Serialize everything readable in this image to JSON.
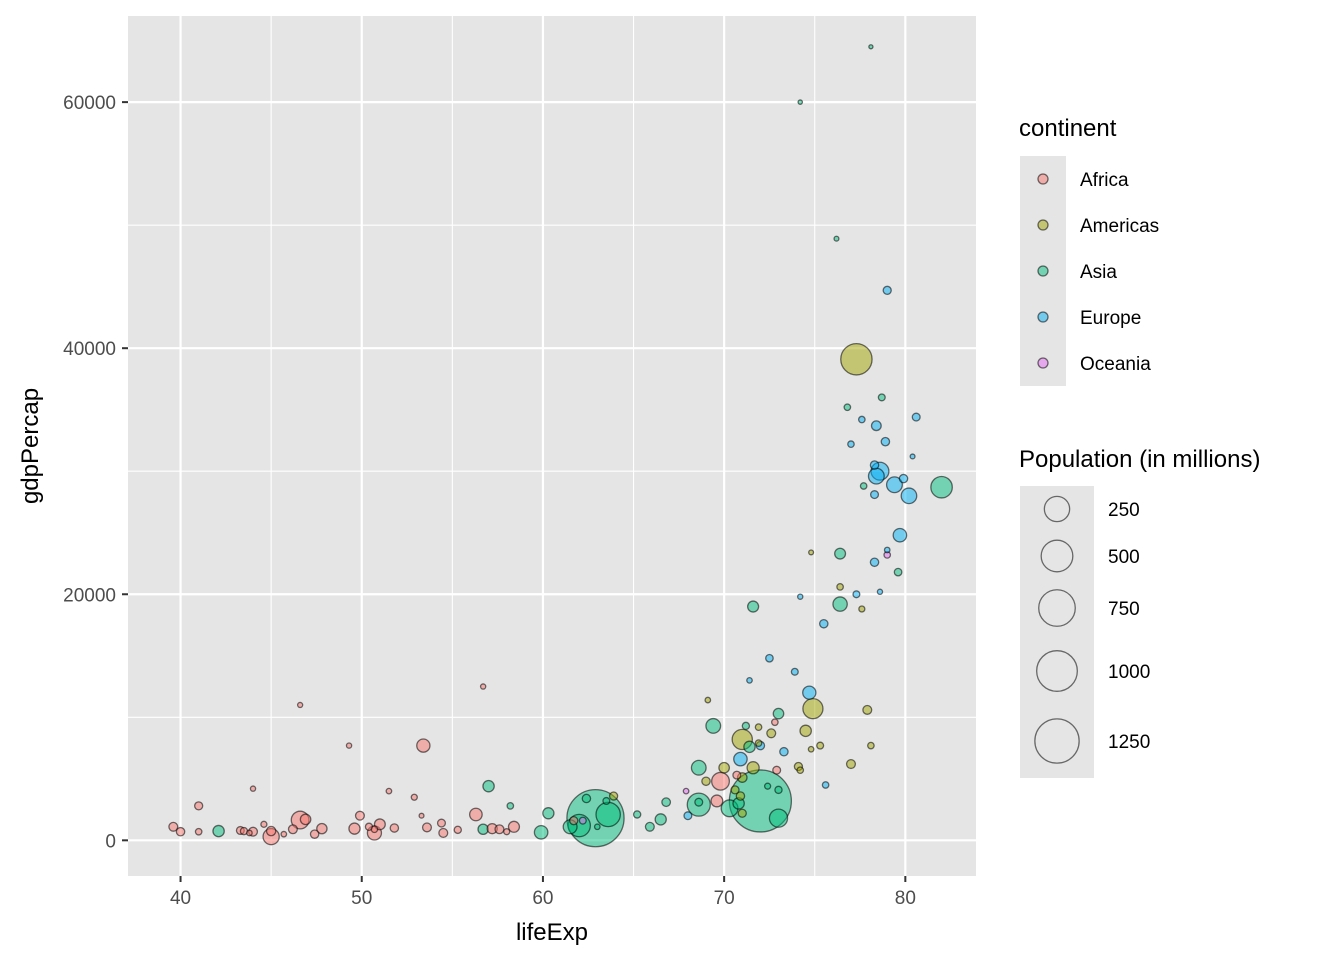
{
  "chart_data": {
    "type": "scatter",
    "title": "",
    "xlabel": "lifeExp",
    "ylabel": "gdpPercap",
    "xlim": [
      37.1,
      83.9
    ],
    "ylim": [
      -2900,
      67000
    ],
    "xticks": [
      40,
      50,
      60,
      70,
      80
    ],
    "yticks": [
      0,
      20000,
      40000,
      60000
    ],
    "xtick_labels": [
      "40",
      "50",
      "60",
      "70",
      "80"
    ],
    "ytick_labels": [
      "0",
      "20000",
      "40000",
      "60000"
    ],
    "grid": true,
    "legend_placement": "right",
    "color_legend": {
      "title": "continent",
      "entries": [
        {
          "label": "Africa",
          "color": "#F8766D"
        },
        {
          "label": "Americas",
          "color": "#A3A500"
        },
        {
          "label": "Asia",
          "color": "#00BF7D"
        },
        {
          "label": "Europe",
          "color": "#00B0F6"
        },
        {
          "label": "Oceania",
          "color": "#E76BF3"
        }
      ]
    },
    "size_legend": {
      "title": "Population (in millions)",
      "entries": [
        {
          "label": "250",
          "value": 250
        },
        {
          "label": "500",
          "value": 500
        },
        {
          "label": "750",
          "value": 750
        },
        {
          "label": "1000",
          "value": 1000
        },
        {
          "label": "1250",
          "value": 1250
        }
      ]
    },
    "point_alpha": 0.5,
    "points": [
      {
        "x": 39.6,
        "y": 1100,
        "pop": 12,
        "c": "Africa"
      },
      {
        "x": 40.0,
        "y": 700,
        "pop": 10,
        "c": "Africa"
      },
      {
        "x": 41.0,
        "y": 2800,
        "pop": 9,
        "c": "Africa"
      },
      {
        "x": 41.0,
        "y": 700,
        "pop": 4,
        "c": "Africa"
      },
      {
        "x": 42.1,
        "y": 750,
        "pop": 25,
        "c": "Asia"
      },
      {
        "x": 43.3,
        "y": 800,
        "pop": 8,
        "c": "Africa"
      },
      {
        "x": 43.5,
        "y": 750,
        "pop": 6,
        "c": "Africa"
      },
      {
        "x": 43.8,
        "y": 600,
        "pop": 2,
        "c": "Africa"
      },
      {
        "x": 44.0,
        "y": 700,
        "pop": 12,
        "c": "Africa"
      },
      {
        "x": 44.0,
        "y": 4200,
        "pop": 1.5,
        "c": "Africa"
      },
      {
        "x": 44.6,
        "y": 1300,
        "pop": 3,
        "c": "Africa"
      },
      {
        "x": 45.0,
        "y": 300,
        "pop": 64,
        "c": "Africa"
      },
      {
        "x": 45.0,
        "y": 750,
        "pop": 14,
        "c": "Africa"
      },
      {
        "x": 45.7,
        "y": 500,
        "pop": 2,
        "c": "Africa"
      },
      {
        "x": 46.2,
        "y": 900,
        "pop": 12,
        "c": "Africa"
      },
      {
        "x": 46.6,
        "y": 1650,
        "pop": 80,
        "c": "Africa"
      },
      {
        "x": 46.9,
        "y": 1700,
        "pop": 20,
        "c": "Africa"
      },
      {
        "x": 46.6,
        "y": 11000,
        "pop": 1.3,
        "c": "Africa"
      },
      {
        "x": 47.4,
        "y": 500,
        "pop": 10,
        "c": "Africa"
      },
      {
        "x": 47.8,
        "y": 950,
        "pop": 19,
        "c": "Africa"
      },
      {
        "x": 49.3,
        "y": 7700,
        "pop": 1.5,
        "c": "Africa"
      },
      {
        "x": 49.6,
        "y": 950,
        "pop": 24,
        "c": "Africa"
      },
      {
        "x": 49.9,
        "y": 2000,
        "pop": 12,
        "c": "Africa"
      },
      {
        "x": 50.4,
        "y": 1100,
        "pop": 6,
        "c": "Africa"
      },
      {
        "x": 50.7,
        "y": 600,
        "pop": 45,
        "c": "Africa"
      },
      {
        "x": 50.7,
        "y": 900,
        "pop": 4,
        "c": "Africa"
      },
      {
        "x": 51.0,
        "y": 1300,
        "pop": 22,
        "c": "Africa"
      },
      {
        "x": 51.5,
        "y": 4000,
        "pop": 2,
        "c": "Africa"
      },
      {
        "x": 51.8,
        "y": 1000,
        "pop": 10,
        "c": "Africa"
      },
      {
        "x": 52.9,
        "y": 3500,
        "pop": 3,
        "c": "Africa"
      },
      {
        "x": 53.3,
        "y": 2000,
        "pop": 1,
        "c": "Africa"
      },
      {
        "x": 53.4,
        "y": 7700,
        "pop": 38,
        "c": "Africa"
      },
      {
        "x": 53.6,
        "y": 1050,
        "pop": 12,
        "c": "Africa"
      },
      {
        "x": 54.4,
        "y": 1400,
        "pop": 8,
        "c": "Africa"
      },
      {
        "x": 54.5,
        "y": 600,
        "pop": 12,
        "c": "Africa"
      },
      {
        "x": 55.3,
        "y": 850,
        "pop": 6,
        "c": "Africa"
      },
      {
        "x": 56.3,
        "y": 2100,
        "pop": 33,
        "c": "Africa"
      },
      {
        "x": 56.7,
        "y": 12500,
        "pop": 1.5,
        "c": "Africa"
      },
      {
        "x": 56.7,
        "y": 900,
        "pop": 19,
        "c": "Asia"
      },
      {
        "x": 57.0,
        "y": 4400,
        "pop": 25,
        "c": "Asia"
      },
      {
        "x": 57.2,
        "y": 950,
        "pop": 18,
        "c": "Africa"
      },
      {
        "x": 57.6,
        "y": 900,
        "pop": 12,
        "c": "Africa"
      },
      {
        "x": 58.0,
        "y": 700,
        "pop": 3,
        "c": "Africa"
      },
      {
        "x": 58.2,
        "y": 2800,
        "pop": 4,
        "c": "Asia"
      },
      {
        "x": 58.4,
        "y": 1100,
        "pop": 23,
        "c": "Africa"
      },
      {
        "x": 59.9,
        "y": 650,
        "pop": 40,
        "c": "Asia"
      },
      {
        "x": 60.3,
        "y": 2200,
        "pop": 24,
        "c": "Asia"
      },
      {
        "x": 61.5,
        "y": 1100,
        "pop": 43,
        "c": "Asia"
      },
      {
        "x": 61.7,
        "y": 1600,
        "pop": 9,
        "c": "Africa"
      },
      {
        "x": 62.0,
        "y": 1200,
        "pop": 140,
        "c": "Asia"
      },
      {
        "x": 62.2,
        "y": 1600,
        "pop": 5,
        "c": "Oceania"
      },
      {
        "x": 62.4,
        "y": 3400,
        "pop": 10,
        "c": "Asia"
      },
      {
        "x": 62.9,
        "y": 1800,
        "pop": 1110,
        "c": "Asia"
      },
      {
        "x": 63.0,
        "y": 1100,
        "pop": 2,
        "c": "Asia"
      },
      {
        "x": 63.6,
        "y": 2100,
        "pop": 170,
        "c": "Asia"
      },
      {
        "x": 63.5,
        "y": 3200,
        "pop": 5,
        "c": "Asia"
      },
      {
        "x": 63.9,
        "y": 3600,
        "pop": 9,
        "c": "Americas"
      },
      {
        "x": 65.2,
        "y": 2100,
        "pop": 6,
        "c": "Asia"
      },
      {
        "x": 65.9,
        "y": 1100,
        "pop": 12,
        "c": "Asia"
      },
      {
        "x": 66.5,
        "y": 1700,
        "pop": 24,
        "c": "Asia"
      },
      {
        "x": 66.8,
        "y": 3100,
        "pop": 11,
        "c": "Asia"
      },
      {
        "x": 67.9,
        "y": 4000,
        "pop": 2,
        "c": "Oceania"
      },
      {
        "x": 68.0,
        "y": 2000,
        "pop": 8,
        "c": "Europe"
      },
      {
        "x": 68.6,
        "y": 2900,
        "pop": 150,
        "c": "Asia"
      },
      {
        "x": 68.6,
        "y": 5900,
        "pop": 50,
        "c": "Asia"
      },
      {
        "x": 68.6,
        "y": 3100,
        "pop": 8,
        "c": "Asia"
      },
      {
        "x": 69.0,
        "y": 4800,
        "pop": 10,
        "c": "Americas"
      },
      {
        "x": 69.1,
        "y": 11400,
        "pop": 2,
        "c": "Americas"
      },
      {
        "x": 69.4,
        "y": 9300,
        "pop": 50,
        "c": "Asia"
      },
      {
        "x": 69.6,
        "y": 3200,
        "pop": 28,
        "c": "Africa"
      },
      {
        "x": 69.8,
        "y": 4800,
        "pop": 80,
        "c": "Africa"
      },
      {
        "x": 70.0,
        "y": 5900,
        "pop": 20,
        "c": "Americas"
      },
      {
        "x": 70.3,
        "y": 2600,
        "pop": 70,
        "c": "Asia"
      },
      {
        "x": 70.6,
        "y": 4100,
        "pop": 9,
        "c": "Americas"
      },
      {
        "x": 70.7,
        "y": 5300,
        "pop": 8,
        "c": "Africa"
      },
      {
        "x": 70.8,
        "y": 3000,
        "pop": 25,
        "c": "Asia"
      },
      {
        "x": 70.9,
        "y": 3600,
        "pop": 10,
        "c": "Americas"
      },
      {
        "x": 70.9,
        "y": 6600,
        "pop": 40,
        "c": "Europe"
      },
      {
        "x": 71.0,
        "y": 8200,
        "pop": 110,
        "c": "Americas"
      },
      {
        "x": 71.0,
        "y": 5100,
        "pop": 15,
        "c": "Americas"
      },
      {
        "x": 71.0,
        "y": 2200,
        "pop": 9,
        "c": "Americas"
      },
      {
        "x": 71.2,
        "y": 9300,
        "pop": 6,
        "c": "Asia"
      },
      {
        "x": 71.4,
        "y": 13000,
        "pop": 2,
        "c": "Europe"
      },
      {
        "x": 71.4,
        "y": 7600,
        "pop": 25,
        "c": "Asia"
      },
      {
        "x": 71.6,
        "y": 5900,
        "pop": 30,
        "c": "Americas"
      },
      {
        "x": 71.6,
        "y": 19000,
        "pop": 23,
        "c": "Asia"
      },
      {
        "x": 71.9,
        "y": 9200,
        "pop": 4,
        "c": "Americas"
      },
      {
        "x": 72.0,
        "y": 3200,
        "pop": 1318,
        "c": "Asia"
      },
      {
        "x": 71.9,
        "y": 7900,
        "pop": 4,
        "c": "Americas"
      },
      {
        "x": 72.0,
        "y": 7700,
        "pop": 10,
        "c": "Europe"
      },
      {
        "x": 72.4,
        "y": 4400,
        "pop": 3,
        "c": "Asia"
      },
      {
        "x": 72.5,
        "y": 14800,
        "pop": 7,
        "c": "Europe"
      },
      {
        "x": 72.6,
        "y": 8700,
        "pop": 12,
        "c": "Americas"
      },
      {
        "x": 72.8,
        "y": 9600,
        "pop": 4,
        "c": "Africa"
      },
      {
        "x": 72.9,
        "y": 5700,
        "pop": 8,
        "c": "Africa"
      },
      {
        "x": 73.0,
        "y": 4100,
        "pop": 6,
        "c": "Asia"
      },
      {
        "x": 73.0,
        "y": 1800,
        "pop": 85,
        "c": "Asia"
      },
      {
        "x": 73.0,
        "y": 10300,
        "pop": 20,
        "c": "Asia"
      },
      {
        "x": 73.3,
        "y": 7200,
        "pop": 10,
        "c": "Europe"
      },
      {
        "x": 73.9,
        "y": 13700,
        "pop": 5,
        "c": "Europe"
      },
      {
        "x": 74.1,
        "y": 6000,
        "pop": 9,
        "c": "Americas"
      },
      {
        "x": 74.2,
        "y": 5700,
        "pop": 4,
        "c": "Americas"
      },
      {
        "x": 74.2,
        "y": 19800,
        "pop": 1.5,
        "c": "Europe"
      },
      {
        "x": 74.2,
        "y": 60000,
        "pop": 0.5,
        "c": "Asia"
      },
      {
        "x": 74.5,
        "y": 8900,
        "pop": 25,
        "c": "Americas"
      },
      {
        "x": 74.7,
        "y": 12000,
        "pop": 38,
        "c": "Europe"
      },
      {
        "x": 74.8,
        "y": 23400,
        "pop": 1,
        "c": "Americas"
      },
      {
        "x": 74.8,
        "y": 7400,
        "pop": 2,
        "c": "Americas"
      },
      {
        "x": 74.9,
        "y": 10700,
        "pop": 108,
        "c": "Americas"
      },
      {
        "x": 75.3,
        "y": 7700,
        "pop": 5,
        "c": "Americas"
      },
      {
        "x": 75.5,
        "y": 17600,
        "pop": 10,
        "c": "Europe"
      },
      {
        "x": 75.6,
        "y": 4500,
        "pop": 4,
        "c": "Europe"
      },
      {
        "x": 76.2,
        "y": 48900,
        "pop": 1,
        "c": "Asia"
      },
      {
        "x": 76.4,
        "y": 20600,
        "pop": 4,
        "c": "Americas"
      },
      {
        "x": 76.4,
        "y": 23300,
        "pop": 22,
        "c": "Asia"
      },
      {
        "x": 76.4,
        "y": 19200,
        "pop": 47,
        "c": "Asia"
      },
      {
        "x": 76.8,
        "y": 35200,
        "pop": 4,
        "c": "Asia"
      },
      {
        "x": 77.0,
        "y": 32200,
        "pop": 4,
        "c": "Europe"
      },
      {
        "x": 77.0,
        "y": 6200,
        "pop": 12,
        "c": "Americas"
      },
      {
        "x": 77.3,
        "y": 39100,
        "pop": 301,
        "c": "Americas"
      },
      {
        "x": 77.3,
        "y": 20000,
        "pop": 5,
        "c": "Europe"
      },
      {
        "x": 77.6,
        "y": 18800,
        "pop": 3,
        "c": "Americas"
      },
      {
        "x": 77.6,
        "y": 34200,
        "pop": 4,
        "c": "Europe"
      },
      {
        "x": 77.9,
        "y": 10600,
        "pop": 12,
        "c": "Americas"
      },
      {
        "x": 77.7,
        "y": 28800,
        "pop": 4,
        "c": "Asia"
      },
      {
        "x": 78.1,
        "y": 64500,
        "pop": 0.3,
        "c": "Asia"
      },
      {
        "x": 78.1,
        "y": 7700,
        "pop": 4,
        "c": "Americas"
      },
      {
        "x": 78.3,
        "y": 22600,
        "pop": 10,
        "c": "Europe"
      },
      {
        "x": 78.3,
        "y": 28100,
        "pop": 8,
        "c": "Europe"
      },
      {
        "x": 78.3,
        "y": 30500,
        "pop": 10,
        "c": "Europe"
      },
      {
        "x": 78.4,
        "y": 33700,
        "pop": 16,
        "c": "Europe"
      },
      {
        "x": 78.4,
        "y": 29600,
        "pop": 60,
        "c": "Europe"
      },
      {
        "x": 78.6,
        "y": 30000,
        "pop": 82,
        "c": "Europe"
      },
      {
        "x": 78.6,
        "y": 20200,
        "pop": 1.5,
        "c": "Europe"
      },
      {
        "x": 78.7,
        "y": 36000,
        "pop": 5,
        "c": "Asia"
      },
      {
        "x": 78.9,
        "y": 32400,
        "pop": 10,
        "c": "Europe"
      },
      {
        "x": 79.0,
        "y": 23600,
        "pop": 2,
        "c": "Europe"
      },
      {
        "x": 79.0,
        "y": 23200,
        "pop": 4,
        "c": "Oceania"
      },
      {
        "x": 79.0,
        "y": 44700,
        "pop": 9,
        "c": "Europe"
      },
      {
        "x": 79.4,
        "y": 28900,
        "pop": 60,
        "c": "Europe"
      },
      {
        "x": 79.6,
        "y": 21800,
        "pop": 7,
        "c": "Asia"
      },
      {
        "x": 79.7,
        "y": 24800,
        "pop": 40,
        "c": "Europe"
      },
      {
        "x": 79.9,
        "y": 29400,
        "pop": 10,
        "c": "Europe"
      },
      {
        "x": 80.2,
        "y": 28000,
        "pop": 58,
        "c": "Europe"
      },
      {
        "x": 80.4,
        "y": 31200,
        "pop": 1,
        "c": "Europe"
      },
      {
        "x": 80.6,
        "y": 34400,
        "pop": 8,
        "c": "Europe"
      },
      {
        "x": 82.0,
        "y": 28700,
        "pop": 127,
        "c": "Asia"
      }
    ]
  }
}
